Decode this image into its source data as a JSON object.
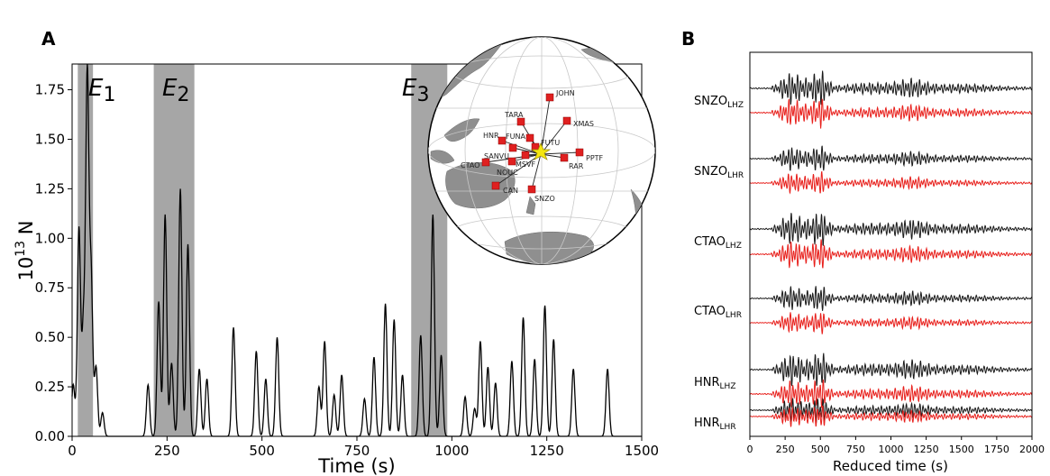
{
  "panel_a": {
    "label": "A",
    "xlabel": "Time (s)",
    "ylabel_base": "10",
    "ylabel_exp": "13",
    "ylabel_unit": " N",
    "events": [
      {
        "letter": "E",
        "sub": "1",
        "x0": 15,
        "x1": 55
      },
      {
        "letter": "E",
        "sub": "2",
        "x0": 215,
        "x1": 322
      },
      {
        "letter": "E",
        "sub": "3",
        "x0": 893,
        "x1": 988
      }
    ]
  },
  "map": {
    "stations": [
      "JOHN",
      "TARA",
      "XMAS",
      "HNR",
      "FUNA",
      "FUTU",
      "SANVU",
      "MSVF",
      "PPTF",
      "CTAO",
      "NOUC",
      "RAR",
      "CAN",
      "SNZO"
    ]
  },
  "panel_b": {
    "label": "B",
    "xlabel": "Reduced time (s)",
    "traces": [
      {
        "station": "SNZO",
        "channel": "LHZ"
      },
      {
        "station": "SNZO",
        "channel": "LHR"
      },
      {
        "station": "CTAO",
        "channel": "LHZ"
      },
      {
        "station": "CTAO",
        "channel": "LHR"
      },
      {
        "station": "HNR",
        "channel": "LHZ"
      },
      {
        "station": "HNR",
        "channel": "LHR"
      }
    ],
    "observed_color": "#1a1a1a",
    "synthetic_color": "#e8201c"
  },
  "chart_data": [
    {
      "type": "line",
      "panel": "A",
      "xlabel": "Time (s)",
      "ylabel": "10^13 N",
      "xlim": [
        0,
        1500
      ],
      "ylim": [
        0,
        1.88
      ],
      "xticks": [
        0,
        250,
        500,
        750,
        1000,
        1250,
        1500
      ],
      "yticks": [
        "0.00",
        "0.25",
        "0.50",
        "0.75",
        "1.00",
        "1.25",
        "1.50",
        "1.75"
      ],
      "grid": false,
      "series": [
        {
          "peaks": [
            [
              3,
              0.26
            ],
            [
              18,
              1.05
            ],
            [
              30,
              0.55
            ],
            [
              40,
              1.8
            ],
            [
              50,
              0.8
            ],
            [
              63,
              0.35
            ],
            [
              80,
              0.12
            ],
            [
              200,
              0.26
            ],
            [
              228,
              0.68
            ],
            [
              245,
              1.12
            ],
            [
              262,
              0.37
            ],
            [
              285,
              1.25
            ],
            [
              305,
              0.97
            ],
            [
              335,
              0.34
            ],
            [
              355,
              0.29
            ],
            [
              425,
              0.55
            ],
            [
              485,
              0.43
            ],
            [
              510,
              0.29
            ],
            [
              540,
              0.5
            ],
            [
              650,
              0.25
            ],
            [
              665,
              0.48
            ],
            [
              690,
              0.21
            ],
            [
              710,
              0.31
            ],
            [
              770,
              0.19
            ],
            [
              795,
              0.4
            ],
            [
              825,
              0.67
            ],
            [
              848,
              0.59
            ],
            [
              870,
              0.31
            ],
            [
              918,
              0.51
            ],
            [
              950,
              1.12
            ],
            [
              972,
              0.41
            ],
            [
              1035,
              0.2
            ],
            [
              1060,
              0.14
            ],
            [
              1075,
              0.48
            ],
            [
              1095,
              0.35
            ],
            [
              1115,
              0.27
            ],
            [
              1158,
              0.38
            ],
            [
              1188,
              0.6
            ],
            [
              1218,
              0.39
            ],
            [
              1245,
              0.66
            ],
            [
              1268,
              0.49
            ],
            [
              1320,
              0.34
            ],
            [
              1410,
              0.34
            ]
          ]
        }
      ]
    },
    {
      "type": "line",
      "panel": "B",
      "xlabel": "Reduced time (s)",
      "xlim": [
        0,
        2000
      ],
      "xticks": [
        0,
        250,
        500,
        750,
        1000,
        1250,
        1500,
        1750,
        2000
      ]
    }
  ]
}
